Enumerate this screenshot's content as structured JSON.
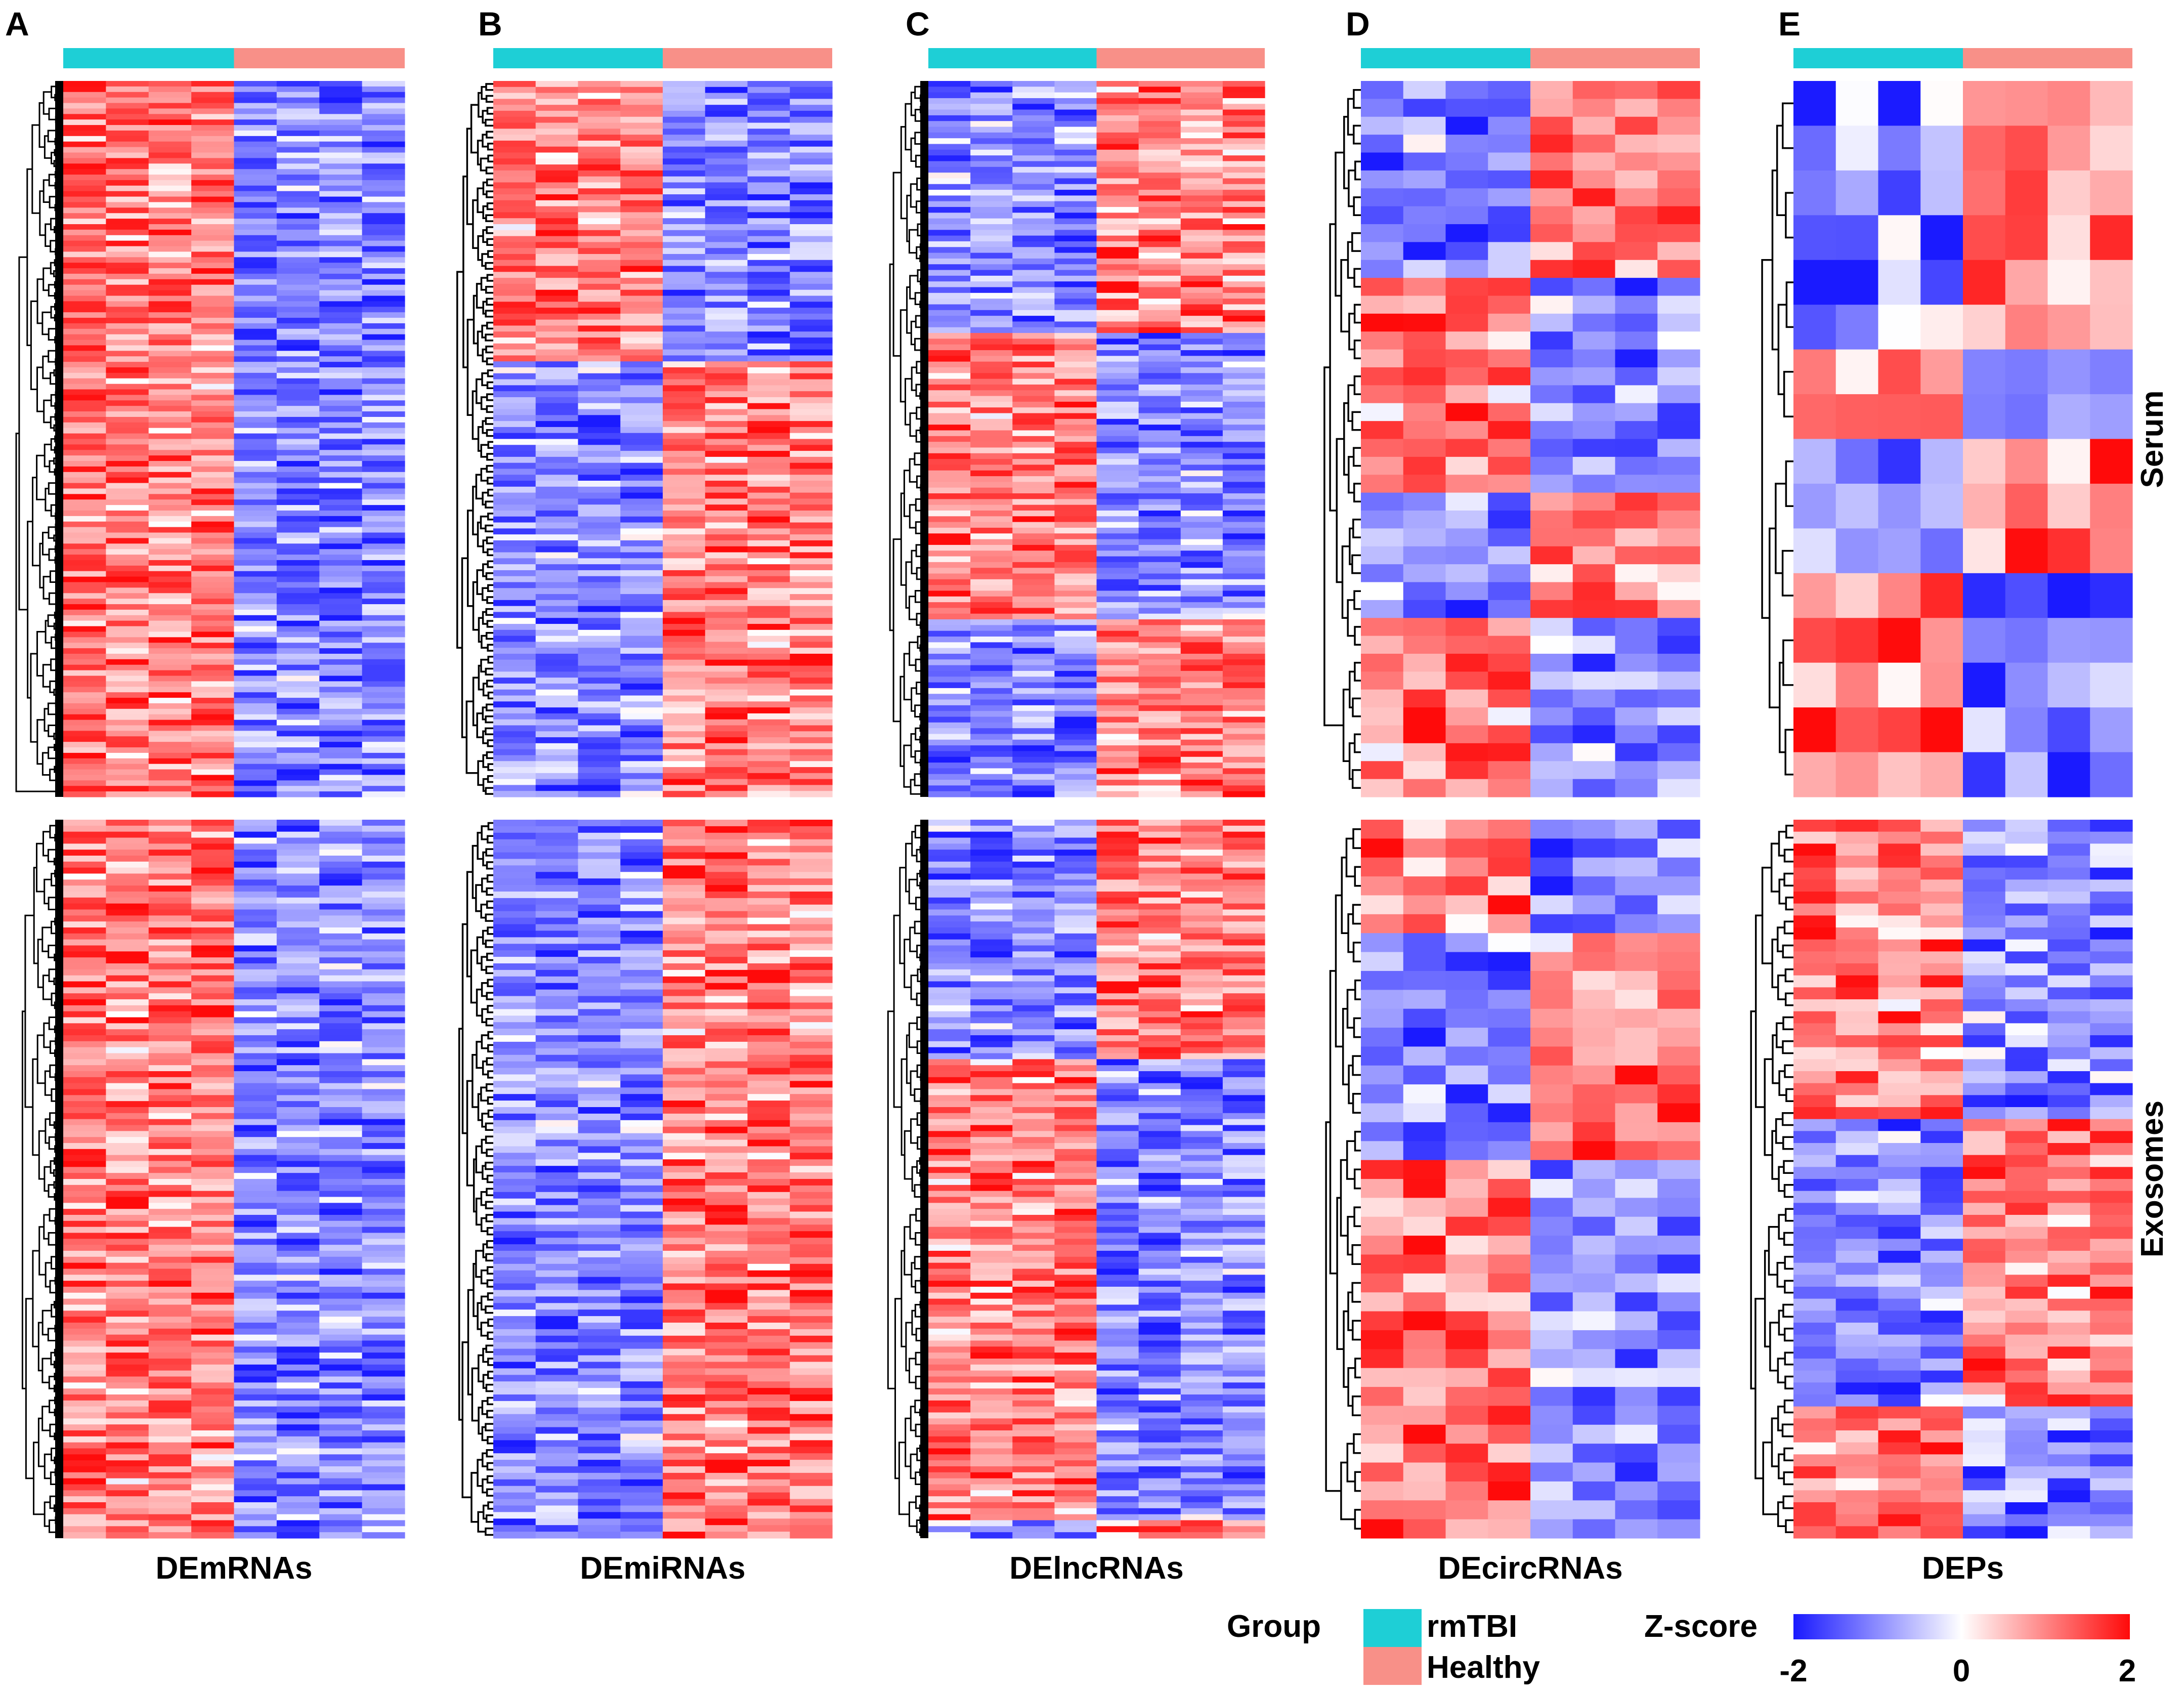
{
  "chart_data": {
    "type": "heatmap",
    "panels": [
      {
        "letter": "A",
        "title": "DEmRNAs"
      },
      {
        "letter": "B",
        "title": "DEmiRNAs"
      },
      {
        "letter": "C",
        "title": "DElncRNAs"
      },
      {
        "letter": "D",
        "title": "DEcircRNAs"
      },
      {
        "letter": "E",
        "title": "DEPs"
      }
    ],
    "row_groups": [
      "Serum",
      "Exosomes"
    ],
    "column_groups": [
      {
        "name": "rmTBI",
        "color": "#1ecfd6",
        "columns": 4
      },
      {
        "name": "Healthy",
        "color": "#f89088",
        "columns": 4
      }
    ],
    "legend": {
      "group_title": "Group",
      "scale_title": "Z-score",
      "min": -2,
      "mid": 0,
      "max": 2,
      "ticks": [
        "-2",
        "0",
        "2"
      ],
      "colors": {
        "low": "#1a1aff",
        "mid": "#ffffff",
        "high": "#ff0a0a"
      }
    }
  }
}
